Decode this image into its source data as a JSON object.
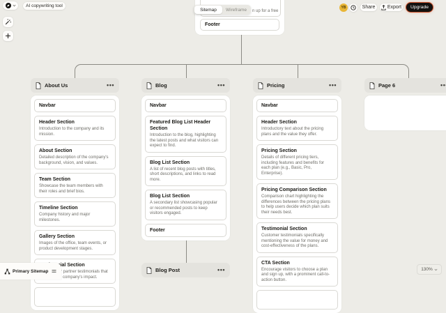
{
  "toolbar": {
    "ai_tool_label": "AI copywriting tool",
    "view_toggle": {
      "options": [
        "Sitemap",
        "Wireframe"
      ],
      "active": "Sitemap"
    },
    "avatar_initials": "YB",
    "share_label": "Share",
    "export_label": "Export",
    "upgrade_label": "Upgrade"
  },
  "canvas": {
    "home_fragment": {
      "cta_visible_fragment": "n up for a free",
      "footer_label": "Footer"
    },
    "pages": [
      {
        "title": "About Us",
        "sections": [
          {
            "title": "Navbar",
            "desc": ""
          },
          {
            "title": "Header Section",
            "desc": "Introduction to the company and its mission."
          },
          {
            "title": "About Section",
            "desc": "Detailed description of the company's background, vision, and values."
          },
          {
            "title": "Team Section",
            "desc": "Showcase the team members with their roles and brief bios."
          },
          {
            "title": "Timeline Section",
            "desc": "Company history and major milestones."
          },
          {
            "title": "Gallery Section",
            "desc": "Images of the office, team events, or product development stages."
          },
          {
            "title": "Testimonial Section",
            "desc": "Customer or partner testimonials that highlight the company's impact."
          }
        ]
      },
      {
        "title": "Blog",
        "sections": [
          {
            "title": "Navbar",
            "desc": ""
          },
          {
            "title": "Featured Blog List Header Section",
            "desc": "Introduction to the blog, highlighting the latest posts and what visitors can expect to find."
          },
          {
            "title": "Blog List Section",
            "desc": "A list of recent blog posts with titles, short descriptions, and links to read more."
          },
          {
            "title": "Blog List Section",
            "desc": "A secondary list showcasing popular or recommended posts to keep visitors engaged."
          },
          {
            "title": "Footer",
            "desc": ""
          }
        ]
      },
      {
        "title": "Pricing",
        "sections": [
          {
            "title": "Navbar",
            "desc": ""
          },
          {
            "title": "Header Section",
            "desc": "Introductory text about the pricing plans and the value they offer."
          },
          {
            "title": "Pricing Section",
            "desc": "Details of different pricing tiers, including features and benefits for each plan (e.g., Basic, Pro, Enterprise)."
          },
          {
            "title": "Pricing Comparison Section",
            "desc": "Comparison chart highlighting the differences between the pricing plans to help users decide which plan suits their needs best."
          },
          {
            "title": "Testimonial Section",
            "desc": "Customer testimonials specifically mentioning the value for money and cost-effectiveness of the plans."
          },
          {
            "title": "CTA Section",
            "desc": "Encourage visitors to choose a plan and sign up, with a prominent call-to-action button."
          }
        ]
      },
      {
        "title": "Page 6",
        "sections": []
      }
    ],
    "subpage": {
      "title": "Blog Post"
    }
  },
  "statusbar": {
    "sitemap_label": "Primary Sitemap",
    "zoom_level": "130%"
  },
  "colors": {
    "canvas_bg": "#EDECE7",
    "avatar_bg": "#E9B636",
    "upgrade_bg": "#131210",
    "upgrade_ring": "#C9502A",
    "connector": "#8B8A84"
  }
}
